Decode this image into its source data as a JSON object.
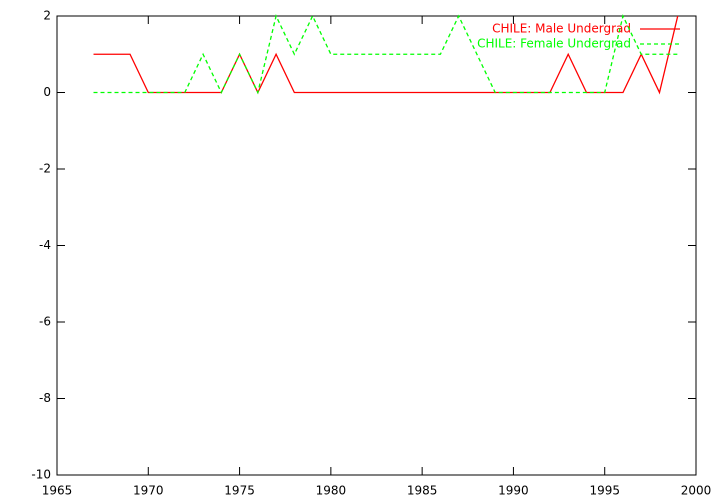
{
  "chart_data": {
    "type": "line",
    "x": [
      1967,
      1968,
      1969,
      1970,
      1971,
      1972,
      1973,
      1974,
      1975,
      1976,
      1977,
      1978,
      1979,
      1980,
      1981,
      1982,
      1983,
      1984,
      1985,
      1986,
      1987,
      1988,
      1989,
      1990,
      1991,
      1992,
      1993,
      1994,
      1995,
      1996,
      1997,
      1998,
      1999
    ],
    "series": [
      {
        "name": "CHILE: Male Undergrad",
        "color": "#ff0000",
        "dash": false,
        "values": [
          1,
          1,
          1,
          0,
          0,
          0,
          0,
          0,
          1,
          0,
          1,
          0,
          0,
          0,
          0,
          0,
          0,
          0,
          0,
          0,
          0,
          0,
          0,
          0,
          0,
          0,
          1,
          0,
          0,
          0,
          1,
          0,
          2
        ]
      },
      {
        "name": "CHILE: Female Undergrad",
        "color": "#00ff00",
        "dash": true,
        "values": [
          0,
          0,
          0,
          0,
          0,
          0,
          1,
          0,
          1,
          0,
          2,
          1,
          2,
          1,
          1,
          1,
          1,
          1,
          1,
          1,
          2,
          1,
          0,
          0,
          0,
          0,
          0,
          0,
          0,
          2,
          1,
          1,
          1
        ]
      }
    ],
    "xlim": [
      1965,
      2000
    ],
    "xticks": [
      1965,
      1970,
      1975,
      1980,
      1985,
      1990,
      1995,
      2000
    ],
    "ylim": [
      -10,
      2
    ],
    "yticks": [
      -10,
      -8,
      -6,
      -4,
      -2,
      0,
      2
    ],
    "legend": "top-right"
  }
}
